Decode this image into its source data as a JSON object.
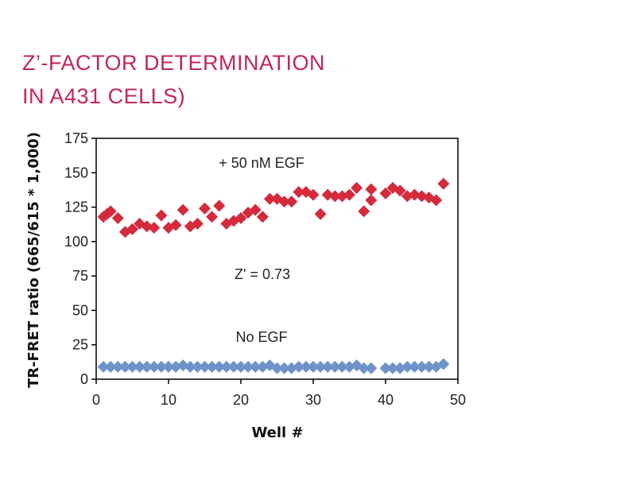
{
  "header": {
    "title_line1": "Z’-FACTOR DETERMINATION",
    "title_line2": "IN A431 CELLS)"
  },
  "colors": {
    "title": "#c0265a",
    "egf_series": "#d42a3c",
    "no_egf_series": "#6f93c8"
  },
  "chart_data": {
    "type": "scatter",
    "title": "Z’-FACTOR DETERMINATION IN A431 CELLS)",
    "xlabel": "Well #",
    "ylabel": "TR-FRET ratio (665/615 * 1,000)",
    "xlim": [
      0,
      50
    ],
    "ylim": [
      0,
      175
    ],
    "xticks": [
      0,
      10,
      20,
      30,
      40,
      50
    ],
    "yticks": [
      0,
      25,
      50,
      75,
      100,
      125,
      150,
      175
    ],
    "grid": false,
    "marker": "diamond",
    "annotations": {
      "egf_label": "+ 50 nM  EGF",
      "zprime": "Z' = 0.73",
      "no_egf_label": "No EGF"
    },
    "series": [
      {
        "name": "+ 50 nM EGF",
        "color": "#d42a3c",
        "x": [
          1,
          2,
          3,
          4,
          5,
          6,
          7,
          8,
          9,
          10,
          11,
          12,
          13,
          14,
          15,
          16,
          17,
          18,
          19,
          20,
          21,
          22,
          23,
          24,
          25,
          26,
          27,
          28,
          29,
          30,
          31,
          32,
          33,
          34,
          35,
          36,
          37,
          38,
          40,
          41,
          42,
          43,
          44,
          45,
          46,
          47,
          48,
          1.5,
          38
        ],
        "y": [
          118,
          122,
          117,
          107,
          109,
          113,
          111,
          110,
          119,
          110,
          112,
          123,
          111,
          113,
          124,
          118,
          126,
          113,
          115,
          117,
          121,
          123,
          118,
          131,
          131,
          129,
          129,
          136,
          136,
          134,
          120,
          134,
          133,
          133,
          134,
          139,
          122,
          130,
          135,
          139,
          137,
          133,
          134,
          133,
          132,
          130,
          142,
          120,
          138
        ]
      },
      {
        "name": "No EGF",
        "color": "#6f93c8",
        "x": [
          1,
          2,
          3,
          4,
          5,
          6,
          7,
          8,
          9,
          10,
          11,
          12,
          13,
          14,
          15,
          16,
          17,
          18,
          19,
          20,
          21,
          22,
          23,
          24,
          25,
          26,
          27,
          28,
          29,
          30,
          31,
          32,
          33,
          34,
          35,
          36,
          37,
          38,
          40,
          41,
          42,
          43,
          44,
          45,
          46,
          47,
          48
        ],
        "y": [
          9,
          9,
          9,
          9,
          9,
          9,
          9,
          9,
          9,
          9,
          9,
          10,
          9,
          9,
          9,
          9,
          9,
          9,
          9,
          9,
          9,
          9,
          9,
          10,
          8,
          8,
          8,
          9,
          9,
          9,
          9,
          9,
          9,
          9,
          9,
          10,
          8,
          8,
          8,
          8,
          8,
          9,
          9,
          9,
          9,
          9,
          11
        ]
      }
    ]
  }
}
